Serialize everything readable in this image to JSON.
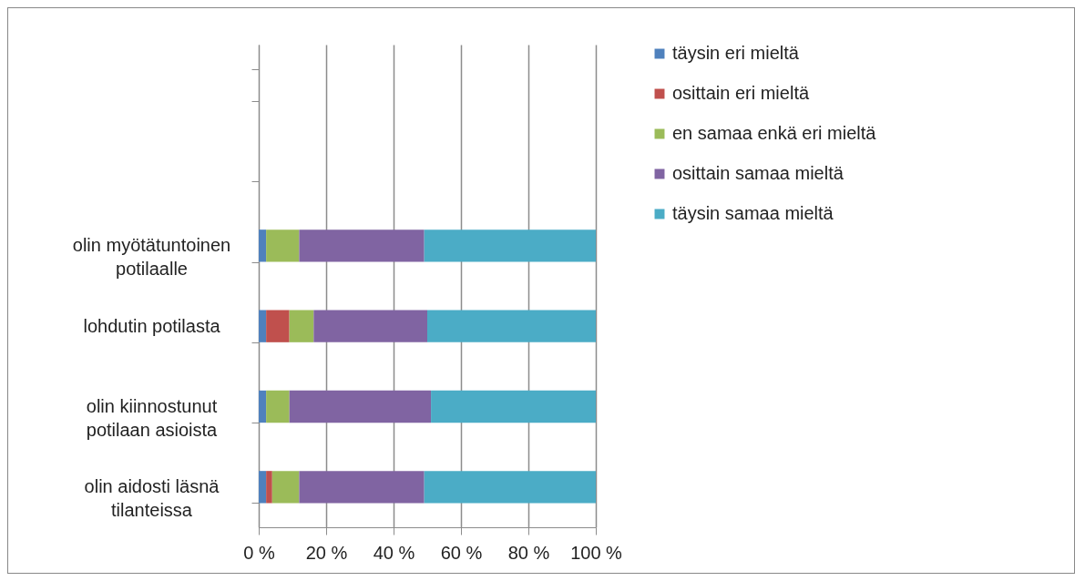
{
  "chart_data": {
    "type": "bar",
    "orientation": "horizontal",
    "stacked": true,
    "categories": [
      null,
      null,
      "olin myötätuntoinen potilaalle",
      "lohdutin potilasta",
      "olin kiinnostunut potilaan asioista",
      "olin aidosti läsnä tilanteissa"
    ],
    "series": [
      {
        "name": "täysin eri mieltä",
        "color": "#4f81bd",
        "values": [
          null,
          null,
          2.2,
          2.2,
          2.2,
          2.2
        ]
      },
      {
        "name": "osittain eri mieltä",
        "color": "#c0504d",
        "values": [
          null,
          null,
          0,
          6.9,
          0,
          1.8
        ]
      },
      {
        "name": "en samaa enkä eri mieltä",
        "color": "#9bbb59",
        "values": [
          null,
          null,
          9.8,
          7.2,
          6.9,
          8
        ]
      },
      {
        "name": "osittain samaa mieltä",
        "color": "#8064a2",
        "values": [
          null,
          null,
          37.1,
          33.7,
          42,
          37.1
        ]
      },
      {
        "name": "täysin samaa mieltä",
        "color": "#4bacc6",
        "values": [
          null,
          null,
          50.9,
          50,
          48.9,
          50.9
        ]
      }
    ],
    "xlim": [
      0,
      100
    ],
    "xticks": [
      {
        "value": 0,
        "label": "0 %"
      },
      {
        "value": 20,
        "label": "20 %"
      },
      {
        "value": 40,
        "label": "40 %"
      },
      {
        "value": 60,
        "label": "60 %"
      },
      {
        "value": 80,
        "label": "80 %"
      },
      {
        "value": 100,
        "label": "100 %"
      }
    ],
    "grid": "x",
    "legend": "right"
  }
}
